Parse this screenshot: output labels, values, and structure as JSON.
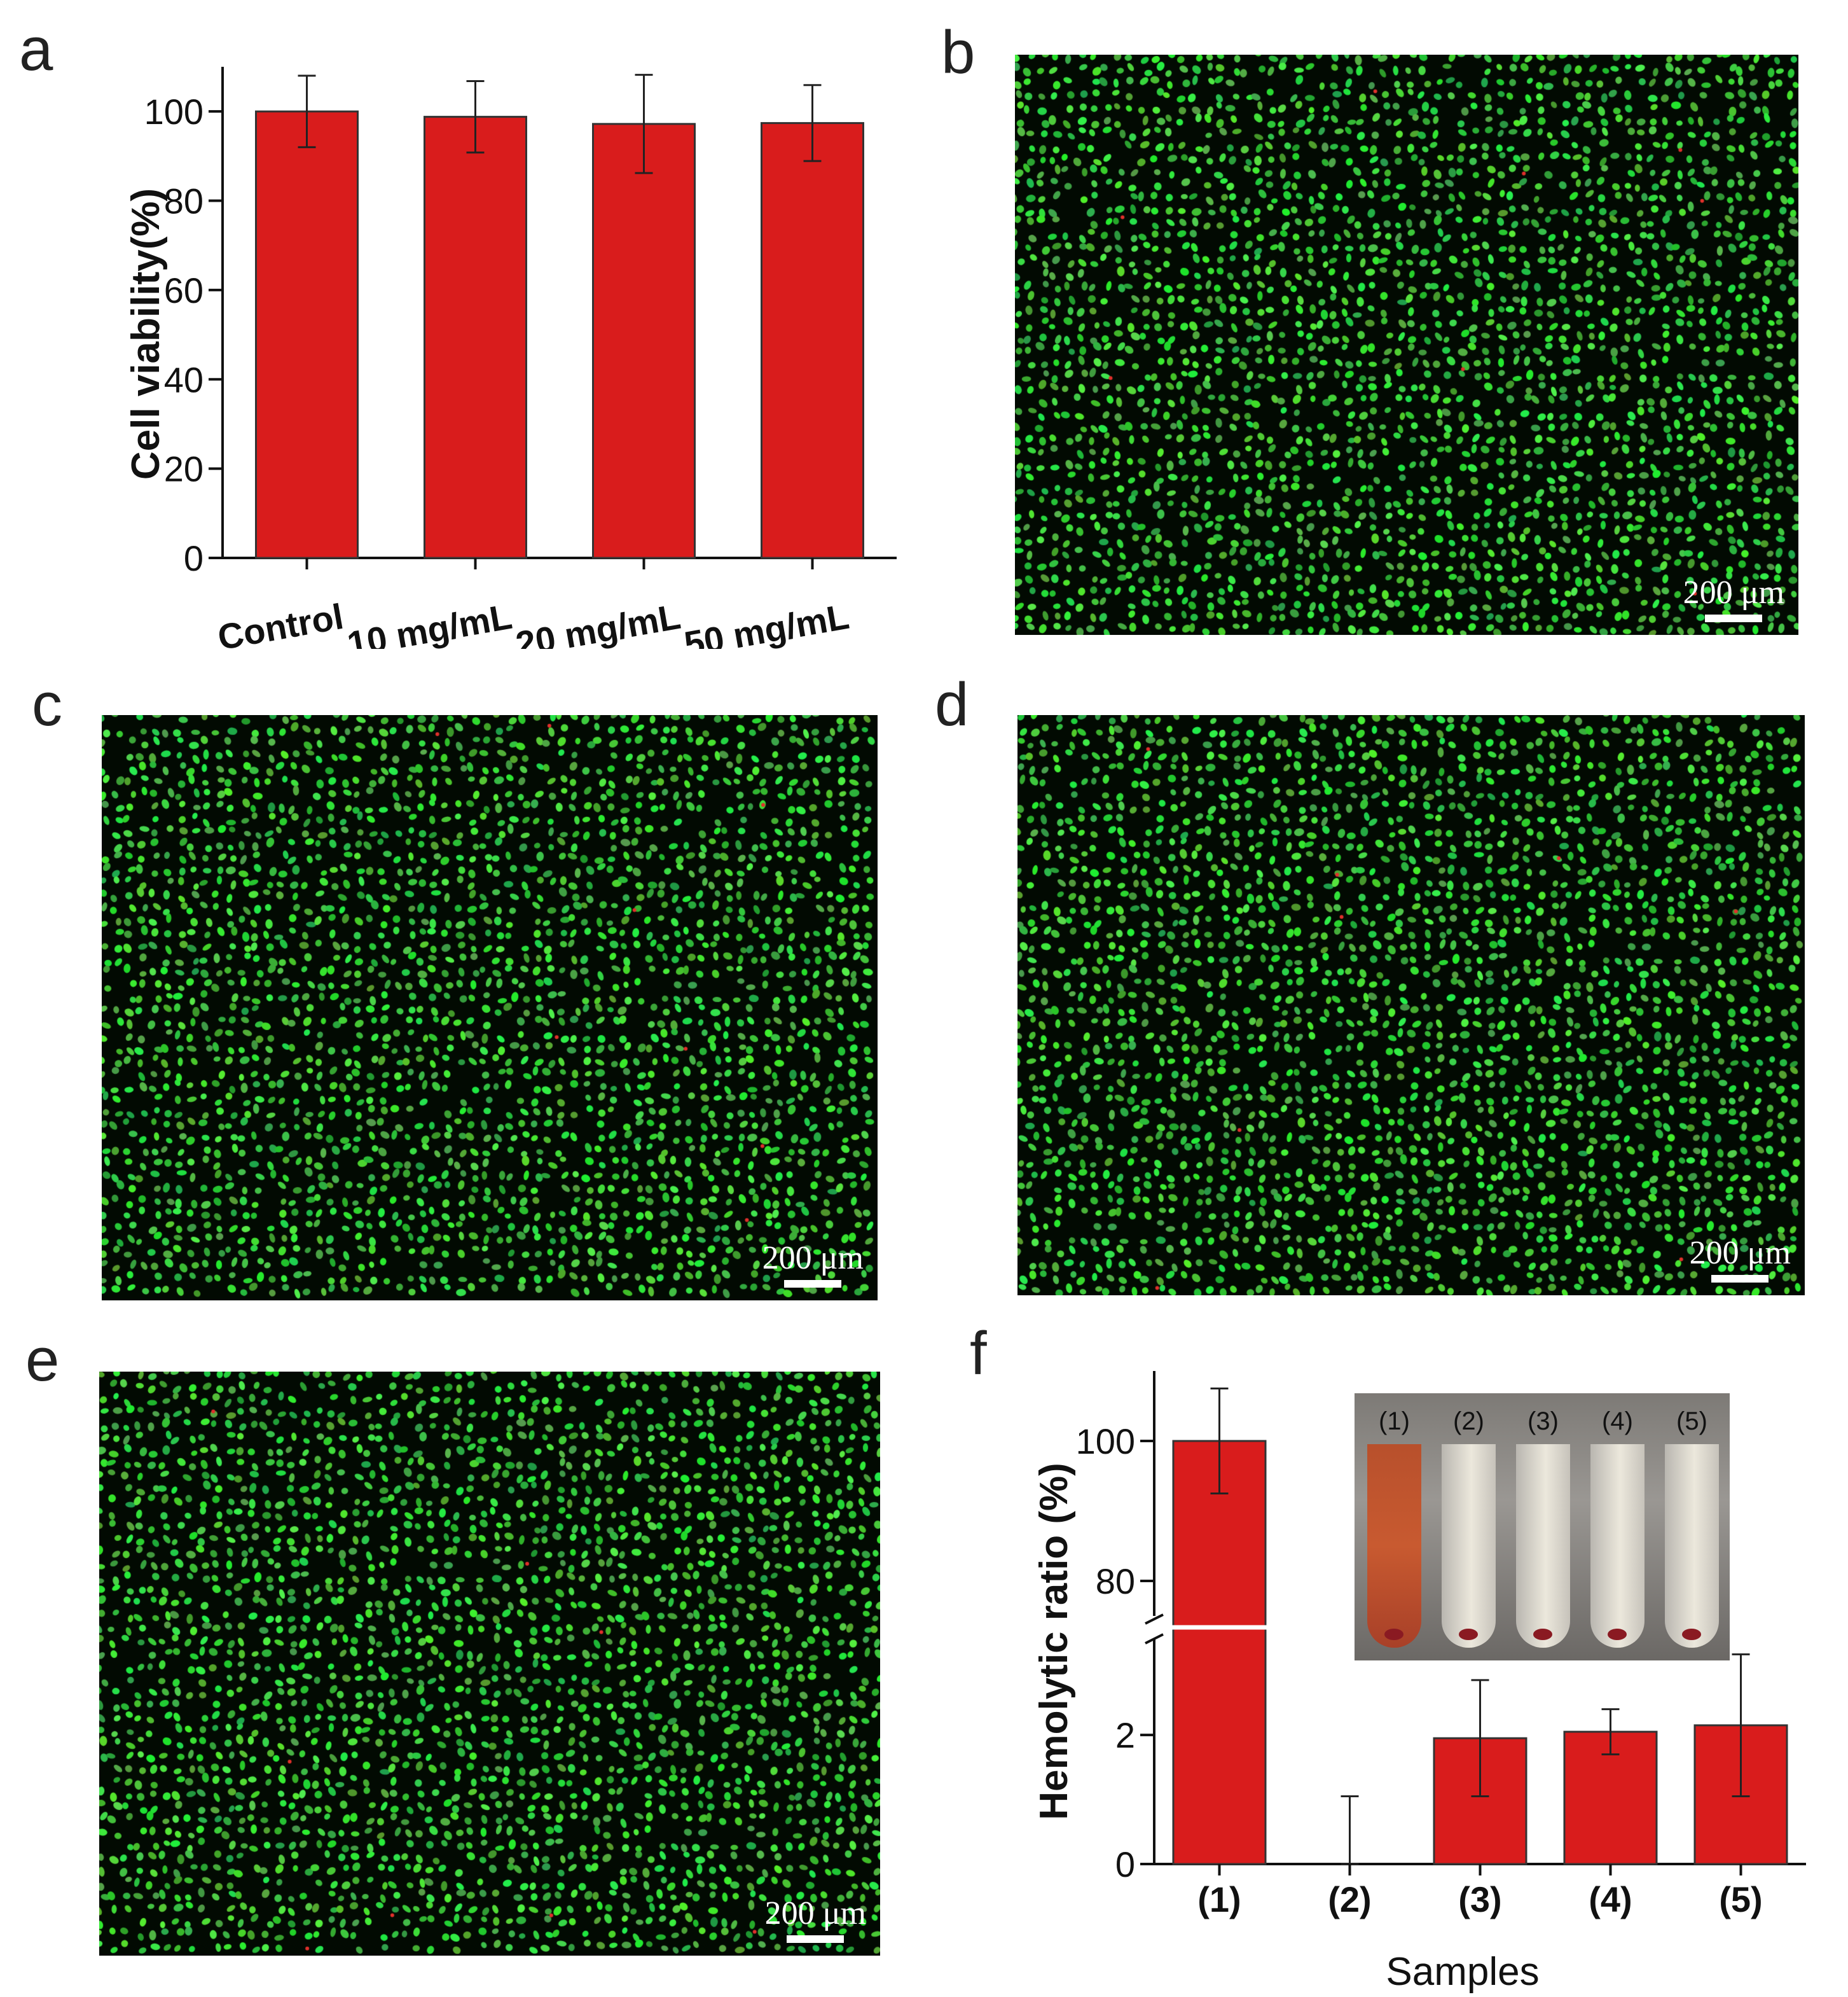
{
  "colors": {
    "bar": "#d91c1c",
    "micro_bg": "#020a02",
    "cell": "#3fd14a",
    "dead_cell": "#e0302b",
    "axis": "#111111"
  },
  "panels": {
    "a": {
      "label": "a"
    },
    "b": {
      "label": "b",
      "scale": "200 μm"
    },
    "c": {
      "label": "c",
      "scale": "200 μm"
    },
    "d": {
      "label": "d",
      "scale": "200 μm"
    },
    "e": {
      "label": "e",
      "scale": "200 μm"
    },
    "f": {
      "label": "f"
    }
  },
  "inset": {
    "tube_labels": [
      "(1)",
      "(2)",
      "(3)",
      "(4)",
      "(5)"
    ],
    "tube_colors": [
      "red",
      "clear",
      "clear",
      "clear",
      "clear"
    ]
  },
  "chart_data": [
    {
      "panel": "a",
      "type": "bar",
      "categories": [
        "Control",
        "10 mg/mL",
        "20 mg/mL",
        "50 mg/mL"
      ],
      "values": [
        100,
        98.8,
        97.2,
        97.4
      ],
      "errors": [
        8,
        8,
        11,
        8.5
      ],
      "ylabel": "Cell viability(%)",
      "xlabel": "",
      "ylim": [
        0,
        110
      ],
      "yticks": [
        0,
        20,
        40,
        60,
        80,
        100
      ]
    },
    {
      "panel": "f",
      "type": "bar",
      "categories": [
        "(1)",
        "(2)",
        "(3)",
        "(4)",
        "(5)"
      ],
      "values": [
        100,
        0,
        1.95,
        2.05,
        2.15
      ],
      "errors": [
        7.5,
        1.05,
        0.9,
        0.35,
        1.1
      ],
      "ylabel": "Hemolytic ratio (%)",
      "xlabel": "Samples",
      "axis_break": {
        "lower": [
          0,
          3.5
        ],
        "upper": [
          75,
          110
        ]
      },
      "yticks": [
        0,
        2,
        80,
        100
      ]
    }
  ]
}
